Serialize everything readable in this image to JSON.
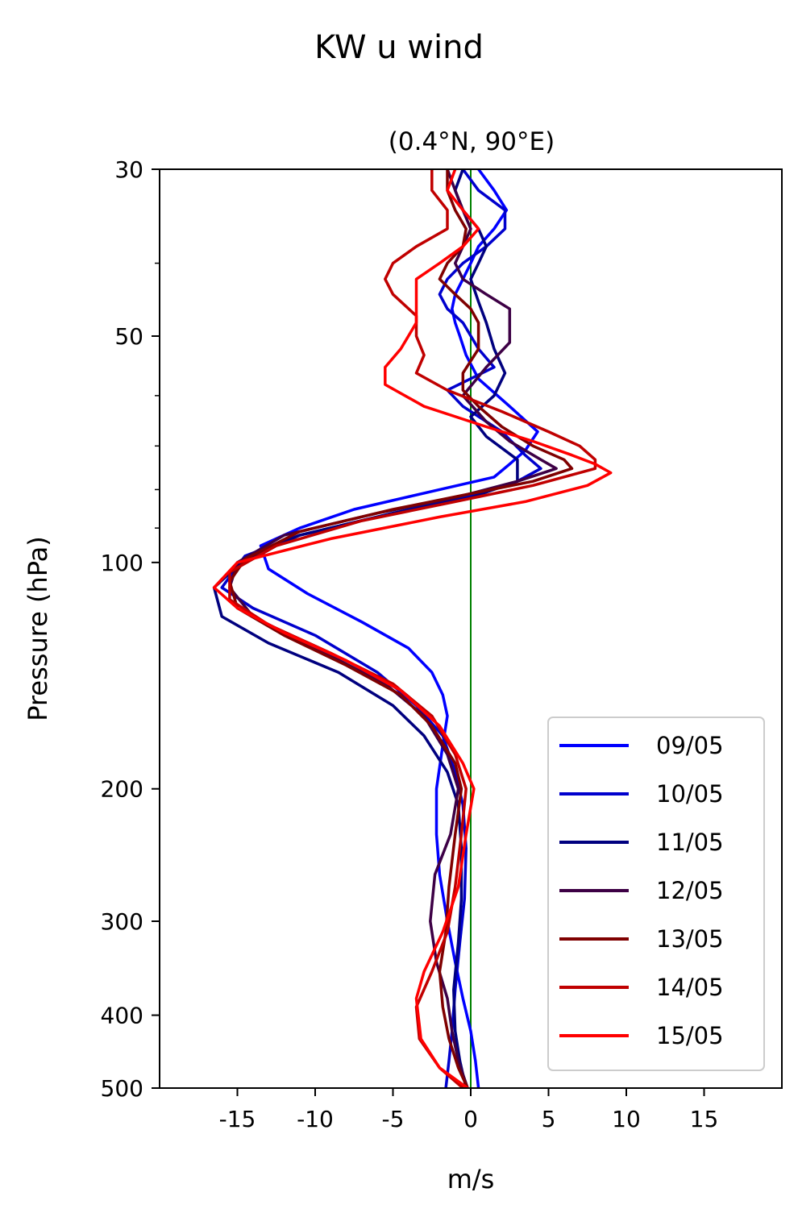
{
  "chart_data": {
    "type": "line",
    "suptitle": "KW u wind",
    "title": "(0.4°N, 90°E)",
    "xlabel": "m/s",
    "ylabel": "Pressure (hPa)",
    "xlim": [
      -20,
      20
    ],
    "ylim": [
      500,
      30
    ],
    "yscale": "log",
    "xticks": [
      -15,
      -10,
      -5,
      0,
      5,
      10,
      15
    ],
    "xtick_labels": [
      "-15",
      "-10",
      "-5",
      "0",
      "5",
      "10",
      "15"
    ],
    "yticks": [
      30,
      50,
      100,
      200,
      300,
      400,
      500
    ],
    "ytick_labels": [
      "30",
      "50",
      "100",
      "200",
      "300",
      "400",
      "500"
    ],
    "y_minor_ticks": [
      40,
      60,
      70,
      80,
      90
    ],
    "vertical_line": {
      "x": 0,
      "color": "#008000"
    },
    "grid": false,
    "legend_location": "lower right",
    "series": [
      {
        "name": "09/05",
        "color": "#0000ff",
        "points": [
          [
            0.5,
            30
          ],
          [
            1.5,
            32
          ],
          [
            2.3,
            34
          ],
          [
            1.5,
            36
          ],
          [
            0.5,
            38
          ],
          [
            0,
            40
          ],
          [
            -0.5,
            42
          ],
          [
            -1,
            44
          ],
          [
            -1.2,
            46
          ],
          [
            -1,
            48
          ],
          [
            -0.7,
            50
          ],
          [
            -0.3,
            53
          ],
          [
            0.5,
            57
          ],
          [
            2.5,
            62
          ],
          [
            4.3,
            67
          ],
          [
            3.5,
            71
          ],
          [
            2.5,
            74
          ],
          [
            1.5,
            77
          ],
          [
            -2,
            80
          ],
          [
            -7.5,
            85
          ],
          [
            -11,
            90
          ],
          [
            -13.5,
            95
          ],
          [
            -13,
            102
          ],
          [
            -10.5,
            110
          ],
          [
            -7,
            120
          ],
          [
            -4,
            130
          ],
          [
            -2.5,
            140
          ],
          [
            -1.8,
            150
          ],
          [
            -1.5,
            160
          ],
          [
            -1.8,
            175
          ],
          [
            -2.2,
            200
          ],
          [
            -2.2,
            230
          ],
          [
            -2,
            260
          ],
          [
            -1.5,
            300
          ],
          [
            -1,
            340
          ],
          [
            -0.5,
            380
          ],
          [
            0,
            420
          ],
          [
            0.3,
            460
          ],
          [
            0.5,
            500
          ]
        ]
      },
      {
        "name": "10/05",
        "color": "#0000cd",
        "points": [
          [
            -0.5,
            30
          ],
          [
            0.5,
            32
          ],
          [
            2.2,
            34
          ],
          [
            2.2,
            36
          ],
          [
            1,
            38
          ],
          [
            -0.5,
            40
          ],
          [
            -1.5,
            42
          ],
          [
            -2,
            44
          ],
          [
            -1.5,
            46
          ],
          [
            -0.5,
            48
          ],
          [
            0.5,
            52
          ],
          [
            1.5,
            55
          ],
          [
            -1.5,
            59
          ],
          [
            -0.5,
            62
          ],
          [
            2,
            67
          ],
          [
            3.5,
            72
          ],
          [
            4.5,
            75
          ],
          [
            3,
            78
          ],
          [
            -0.5,
            82
          ],
          [
            -5,
            86
          ],
          [
            -11,
            92
          ],
          [
            -14.5,
            98
          ],
          [
            -16,
            108
          ],
          [
            -14,
            115
          ],
          [
            -10,
            125
          ],
          [
            -6,
            140
          ],
          [
            -3.5,
            155
          ],
          [
            -1.8,
            170
          ],
          [
            -1,
            190
          ],
          [
            -0.5,
            210
          ],
          [
            -0.3,
            240
          ],
          [
            -0.4,
            280
          ],
          [
            -0.7,
            320
          ],
          [
            -1,
            370
          ],
          [
            -1.2,
            420
          ],
          [
            -1.4,
            460
          ],
          [
            -1.6,
            500
          ]
        ]
      },
      {
        "name": "11/05",
        "color": "#00007f",
        "points": [
          [
            -0.5,
            30
          ],
          [
            -1,
            32
          ],
          [
            -0.5,
            34
          ],
          [
            0.5,
            36
          ],
          [
            1,
            38
          ],
          [
            0.5,
            40
          ],
          [
            0,
            42
          ],
          [
            0.5,
            45
          ],
          [
            1,
            48
          ],
          [
            1.5,
            52
          ],
          [
            2.2,
            56
          ],
          [
            1.5,
            60
          ],
          [
            0,
            64
          ],
          [
            1,
            68
          ],
          [
            3,
            73
          ],
          [
            3,
            78
          ],
          [
            0,
            82
          ],
          [
            -5,
            86
          ],
          [
            -11,
            92
          ],
          [
            -14.5,
            99
          ],
          [
            -16.5,
            108
          ],
          [
            -16,
            118
          ],
          [
            -13,
            128
          ],
          [
            -8.5,
            140
          ],
          [
            -5,
            155
          ],
          [
            -3,
            170
          ],
          [
            -1.5,
            190
          ],
          [
            -0.8,
            210
          ],
          [
            -0.6,
            240
          ],
          [
            -0.6,
            280
          ],
          [
            -0.8,
            320
          ],
          [
            -1.1,
            370
          ],
          [
            -1,
            420
          ],
          [
            -0.7,
            460
          ],
          [
            -0.3,
            500
          ]
        ]
      },
      {
        "name": "12/05",
        "color": "#3d0045",
        "points": [
          [
            -1.5,
            30
          ],
          [
            -1,
            32
          ],
          [
            -0.5,
            34
          ],
          [
            0,
            36
          ],
          [
            -0.5,
            38
          ],
          [
            -1,
            40
          ],
          [
            -0.5,
            42
          ],
          [
            1,
            44
          ],
          [
            2.5,
            46
          ],
          [
            2.5,
            48
          ],
          [
            2.5,
            51
          ],
          [
            1,
            55
          ],
          [
            -0.5,
            60
          ],
          [
            1,
            65
          ],
          [
            2.5,
            69
          ],
          [
            4.5,
            73
          ],
          [
            5.5,
            75
          ],
          [
            3,
            78
          ],
          [
            -1,
            82
          ],
          [
            -6,
            86
          ],
          [
            -12,
            92
          ],
          [
            -15,
            100
          ],
          [
            -15.5,
            108
          ],
          [
            -14,
            118
          ],
          [
            -10,
            130
          ],
          [
            -5.5,
            145
          ],
          [
            -3,
            160
          ],
          [
            -1.5,
            180
          ],
          [
            -0.8,
            200
          ],
          [
            -1.3,
            230
          ],
          [
            -2.3,
            260
          ],
          [
            -2.6,
            300
          ],
          [
            -2.2,
            340
          ],
          [
            -1.5,
            380
          ],
          [
            -1.2,
            420
          ],
          [
            -0.8,
            460
          ],
          [
            -0.2,
            500
          ]
        ]
      },
      {
        "name": "13/05",
        "color": "#7f0000",
        "points": [
          [
            -1.5,
            30
          ],
          [
            -1.5,
            32
          ],
          [
            -1,
            34
          ],
          [
            -0.3,
            36
          ],
          [
            -0.5,
            38
          ],
          [
            -1.5,
            40
          ],
          [
            -2,
            42
          ],
          [
            -1,
            44
          ],
          [
            0,
            46
          ],
          [
            0.5,
            48
          ],
          [
            0.5,
            52
          ],
          [
            -0.5,
            56
          ],
          [
            -0.5,
            59
          ],
          [
            0.5,
            62
          ],
          [
            2,
            66
          ],
          [
            4,
            70
          ],
          [
            6,
            73
          ],
          [
            6.5,
            75
          ],
          [
            4,
            78
          ],
          [
            0,
            81
          ],
          [
            -5,
            85
          ],
          [
            -11,
            91
          ],
          [
            -14.5,
            99
          ],
          [
            -15.5,
            106
          ],
          [
            -15,
            115
          ],
          [
            -12,
            125
          ],
          [
            -8,
            137
          ],
          [
            -4.5,
            150
          ],
          [
            -2.5,
            165
          ],
          [
            -1,
            185
          ],
          [
            -0.6,
            200
          ],
          [
            -1,
            230
          ],
          [
            -1.4,
            270
          ],
          [
            -1.6,
            310
          ],
          [
            -2,
            350
          ],
          [
            -1.8,
            390
          ],
          [
            -1.4,
            430
          ],
          [
            -0.8,
            470
          ],
          [
            -0.2,
            500
          ]
        ]
      },
      {
        "name": "14/05",
        "color": "#c00000",
        "points": [
          [
            -2.5,
            30
          ],
          [
            -2.5,
            32
          ],
          [
            -1.5,
            34
          ],
          [
            -1.5,
            36
          ],
          [
            -3.5,
            38
          ],
          [
            -5,
            40
          ],
          [
            -5.5,
            42
          ],
          [
            -5,
            44
          ],
          [
            -3.5,
            47
          ],
          [
            -3.5,
            50
          ],
          [
            -3,
            53
          ],
          [
            -3.5,
            56
          ],
          [
            -1.5,
            59
          ],
          [
            2,
            63
          ],
          [
            5,
            67
          ],
          [
            7,
            70
          ],
          [
            8,
            73
          ],
          [
            8,
            75
          ],
          [
            4,
            79
          ],
          [
            -1,
            83
          ],
          [
            -7,
            88
          ],
          [
            -12.5,
            95
          ],
          [
            -15.5,
            103
          ],
          [
            -15.5,
            112
          ],
          [
            -13,
            121
          ],
          [
            -9,
            132
          ],
          [
            -5,
            145
          ],
          [
            -2.5,
            160
          ],
          [
            -1,
            180
          ],
          [
            -0.3,
            200
          ],
          [
            -0.6,
            230
          ],
          [
            -1,
            270
          ],
          [
            -1.5,
            310
          ],
          [
            -2.5,
            350
          ],
          [
            -3.5,
            390
          ],
          [
            -3.3,
            430
          ],
          [
            -2,
            470
          ],
          [
            -0.5,
            500
          ]
        ]
      },
      {
        "name": "15/05",
        "color": "#ff0000",
        "points": [
          [
            -1,
            30
          ],
          [
            -1.5,
            32
          ],
          [
            -0.5,
            34
          ],
          [
            0.5,
            36
          ],
          [
            -0.5,
            38
          ],
          [
            -2,
            40
          ],
          [
            -3.5,
            42
          ],
          [
            -3.5,
            45
          ],
          [
            -3.5,
            48
          ],
          [
            -4.5,
            52
          ],
          [
            -5.5,
            55
          ],
          [
            -5.5,
            58
          ],
          [
            -3,
            62
          ],
          [
            1,
            66
          ],
          [
            4,
            69
          ],
          [
            6.5,
            72
          ],
          [
            8,
            74
          ],
          [
            9,
            76
          ],
          [
            7.5,
            79
          ],
          [
            3.5,
            83
          ],
          [
            -2,
            87
          ],
          [
            -9,
            93
          ],
          [
            -15,
            100
          ],
          [
            -16.5,
            108
          ],
          [
            -15,
            115
          ],
          [
            -12,
            124
          ],
          [
            -8,
            135
          ],
          [
            -4.5,
            148
          ],
          [
            -2,
            165
          ],
          [
            -0.5,
            185
          ],
          [
            0.2,
            200
          ],
          [
            -0.3,
            230
          ],
          [
            -0.8,
            270
          ],
          [
            -1.8,
            310
          ],
          [
            -3,
            350
          ],
          [
            -3.5,
            380
          ],
          [
            -3.2,
            430
          ],
          [
            -2,
            470
          ],
          [
            -0.2,
            500
          ]
        ]
      }
    ]
  }
}
